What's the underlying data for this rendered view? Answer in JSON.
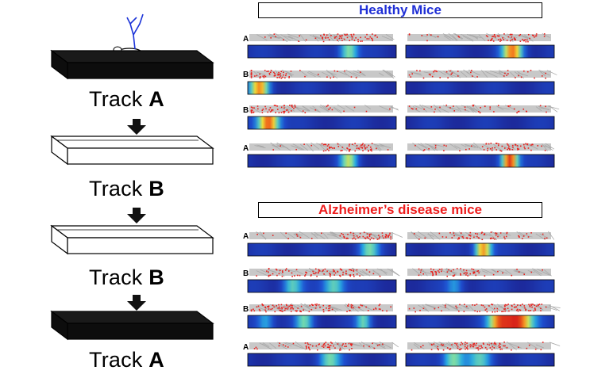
{
  "left_panel": {
    "sequence": [
      {
        "prefix": "Track ",
        "letter": "A",
        "style": "dark"
      },
      {
        "prefix": "Track ",
        "letter": "B",
        "style": "light"
      },
      {
        "prefix": "Track ",
        "letter": "B",
        "style": "light"
      },
      {
        "prefix": "Track ",
        "letter": "A",
        "style": "dark"
      }
    ]
  },
  "healthy": {
    "title": "Healthy Mice",
    "title_color": "#1f2fd6",
    "rows": [
      {
        "letter": "A",
        "spots": [
          [
            [
              0.68,
              0.55,
              0.75
            ]
          ],
          [
            [
              0.72,
              0.8,
              0.85
            ]
          ]
        ]
      },
      {
        "letter": "B",
        "spots": [
          [
            [
              0.08,
              0.75,
              0.8
            ]
          ],
          []
        ]
      },
      {
        "letter": "B",
        "spots": [
          [
            [
              0.14,
              0.9,
              0.9
            ]
          ],
          []
        ]
      },
      {
        "letter": "A",
        "spots": [
          [
            [
              0.68,
              0.55,
              0.7
            ]
          ],
          [
            [
              0.7,
              0.95,
              0.7
            ]
          ]
        ]
      }
    ]
  },
  "alzheimer": {
    "title": "Alzheimer’s disease mice",
    "title_color": "#ee1c1c",
    "rows": [
      {
        "letter": "A",
        "spots": [
          [
            [
              0.82,
              0.45,
              0.8
            ]
          ],
          [
            [
              0.52,
              0.8,
              0.7
            ]
          ]
        ]
      },
      {
        "letter": "B",
        "spots": [
          [
            [
              0.3,
              0.45,
              0.8
            ],
            [
              0.58,
              0.5,
              0.9
            ]
          ],
          [
            [
              0.33,
              0.3,
              0.7
            ]
          ]
        ]
      },
      {
        "letter": "B",
        "spots": [
          [
            [
              0.12,
              0.35,
              0.7
            ],
            [
              0.38,
              0.45,
              0.7
            ],
            [
              0.78,
              0.45,
              0.6
            ]
          ],
          [
            [
              0.75,
              0.95,
              1.3
            ],
            [
              0.62,
              0.6,
              0.9
            ]
          ]
        ]
      },
      {
        "letter": "A",
        "spots": [
          [
            [
              0.55,
              0.5,
              0.9
            ]
          ],
          [
            [
              0.32,
              0.55,
              0.85
            ],
            [
              0.5,
              0.4,
              1.0
            ]
          ]
        ]
      }
    ]
  },
  "colors": {
    "heatmap_low": "#1c2a9c",
    "trajectory_gray": "#c8c8c8",
    "spike_red": "#e8201c"
  }
}
